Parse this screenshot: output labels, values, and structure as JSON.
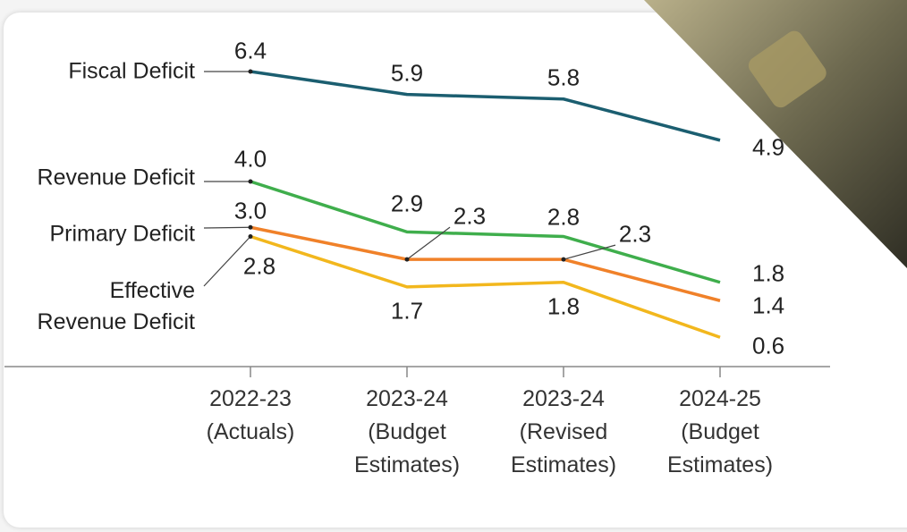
{
  "chart_data": {
    "type": "line",
    "categories": [
      "2022-23\n(Actuals)",
      "2023-24\n(Budget\nEstimates)",
      "2023-24\n(Revised\nEstimates)",
      "2024-25\n(Budget\nEstimates)"
    ],
    "series": [
      {
        "name": "Fiscal Deficit",
        "color": "#1b5e70",
        "values": [
          6.4,
          5.9,
          5.8,
          4.9
        ]
      },
      {
        "name": "Revenue Deficit",
        "color": "#3fae4c",
        "values": [
          4.0,
          2.9,
          2.8,
          1.8
        ],
        "value_labels": [
          "4.0",
          "2.9",
          "2.8",
          "1.8"
        ]
      },
      {
        "name": "Primary Deficit",
        "color": "#f08129",
        "values": [
          3.0,
          2.3,
          2.3,
          1.4
        ],
        "value_labels": [
          "3.0",
          "2.3",
          "2.3",
          "1.4"
        ]
      },
      {
        "name": "Effective\nRevenue Deficit",
        "color": "#f2b71d",
        "values": [
          2.8,
          1.7,
          1.8,
          0.6
        ]
      }
    ],
    "ylim": [
      0,
      6.4
    ]
  }
}
